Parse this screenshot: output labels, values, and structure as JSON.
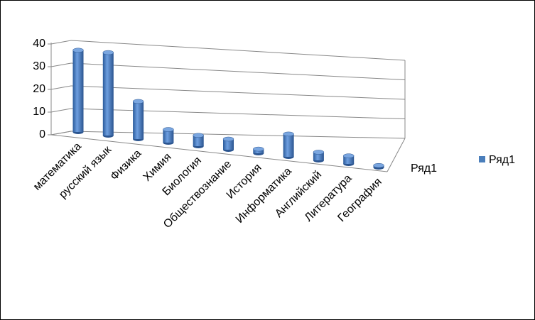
{
  "chart_data": {
    "type": "bar3d",
    "categories": [
      "математика",
      "русский язык",
      "Физика",
      "Химия",
      "Биология",
      "Обществознание",
      "История",
      "Информатика",
      "Английский",
      "Литература",
      "География"
    ],
    "series": [
      {
        "name": "Ряд1",
        "color": "#4a7ebb",
        "values": [
          36,
          37,
          17,
          6,
          5,
          5,
          2,
          11,
          4,
          4,
          1
        ]
      }
    ],
    "depth_label": "Ряд1",
    "ylim": [
      0,
      40
    ],
    "yticks": [
      0,
      10,
      20,
      30,
      40
    ],
    "grid": true,
    "legend": "right"
  }
}
